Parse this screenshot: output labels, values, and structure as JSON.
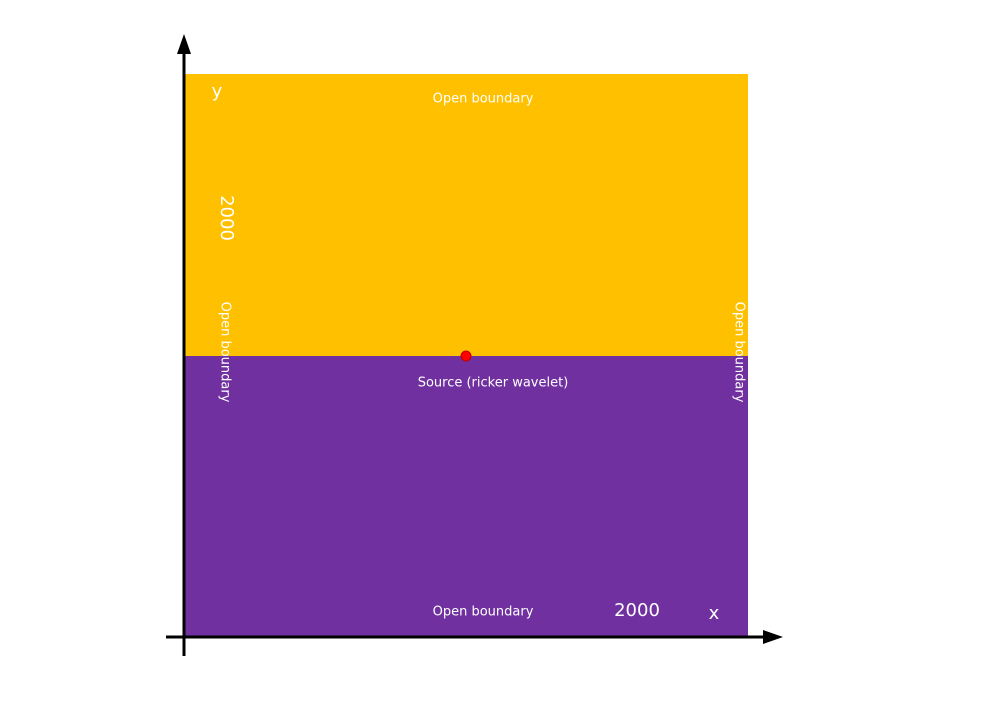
{
  "axes": {
    "x_label": "x",
    "y_label": "y"
  },
  "domain": {
    "width_label": "2000",
    "height_label": "2000"
  },
  "boundaries": {
    "top": "Open boundary",
    "bottom": "Open boundary",
    "left": "Open boundary",
    "right": "Open boundary"
  },
  "source": {
    "label": "Source (ricker wavelet)"
  }
}
